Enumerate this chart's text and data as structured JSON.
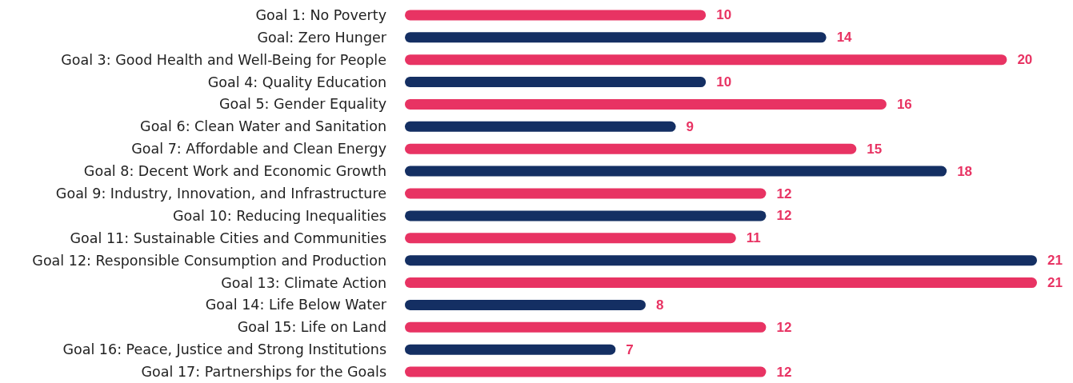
{
  "chart_data": {
    "type": "bar",
    "orientation": "horizontal",
    "categories": [
      "Goal 1: No Poverty",
      "Goal: Zero Hunger",
      "Goal 3: Good Health and Well-Being for People",
      "Goal 4: Quality Education",
      "Goal 5: Gender Equality",
      "Goal 6: Clean Water and Sanitation",
      "Goal 7: Affordable and Clean Energy",
      "Goal 8: Decent Work and Economic Growth",
      "Goal 9: Industry, Innovation, and Infrastructure",
      "Goal 10: Reducing Inequalities",
      "Goal 11: Sustainable Cities and Communities",
      "Goal 12: Responsible Consumption and Production",
      "Goal 13: Climate Action",
      "Goal 14: Life Below Water",
      "Goal 15: Life on Land",
      "Goal 16: Peace, Justice and Strong Institutions",
      "Goal 17: Partnerships for the Goals"
    ],
    "values": [
      10,
      14,
      20,
      10,
      16,
      9,
      15,
      18,
      12,
      12,
      11,
      21,
      21,
      8,
      12,
      7,
      12
    ],
    "colors": [
      "#e83363",
      "#142f63",
      "#e83363",
      "#142f63",
      "#e83363",
      "#142f63",
      "#e83363",
      "#142f63",
      "#e83363",
      "#142f63",
      "#e83363",
      "#142f63",
      "#e83363",
      "#142f63",
      "#e83363",
      "#142f63",
      "#e83363"
    ],
    "data_labels": true
  }
}
